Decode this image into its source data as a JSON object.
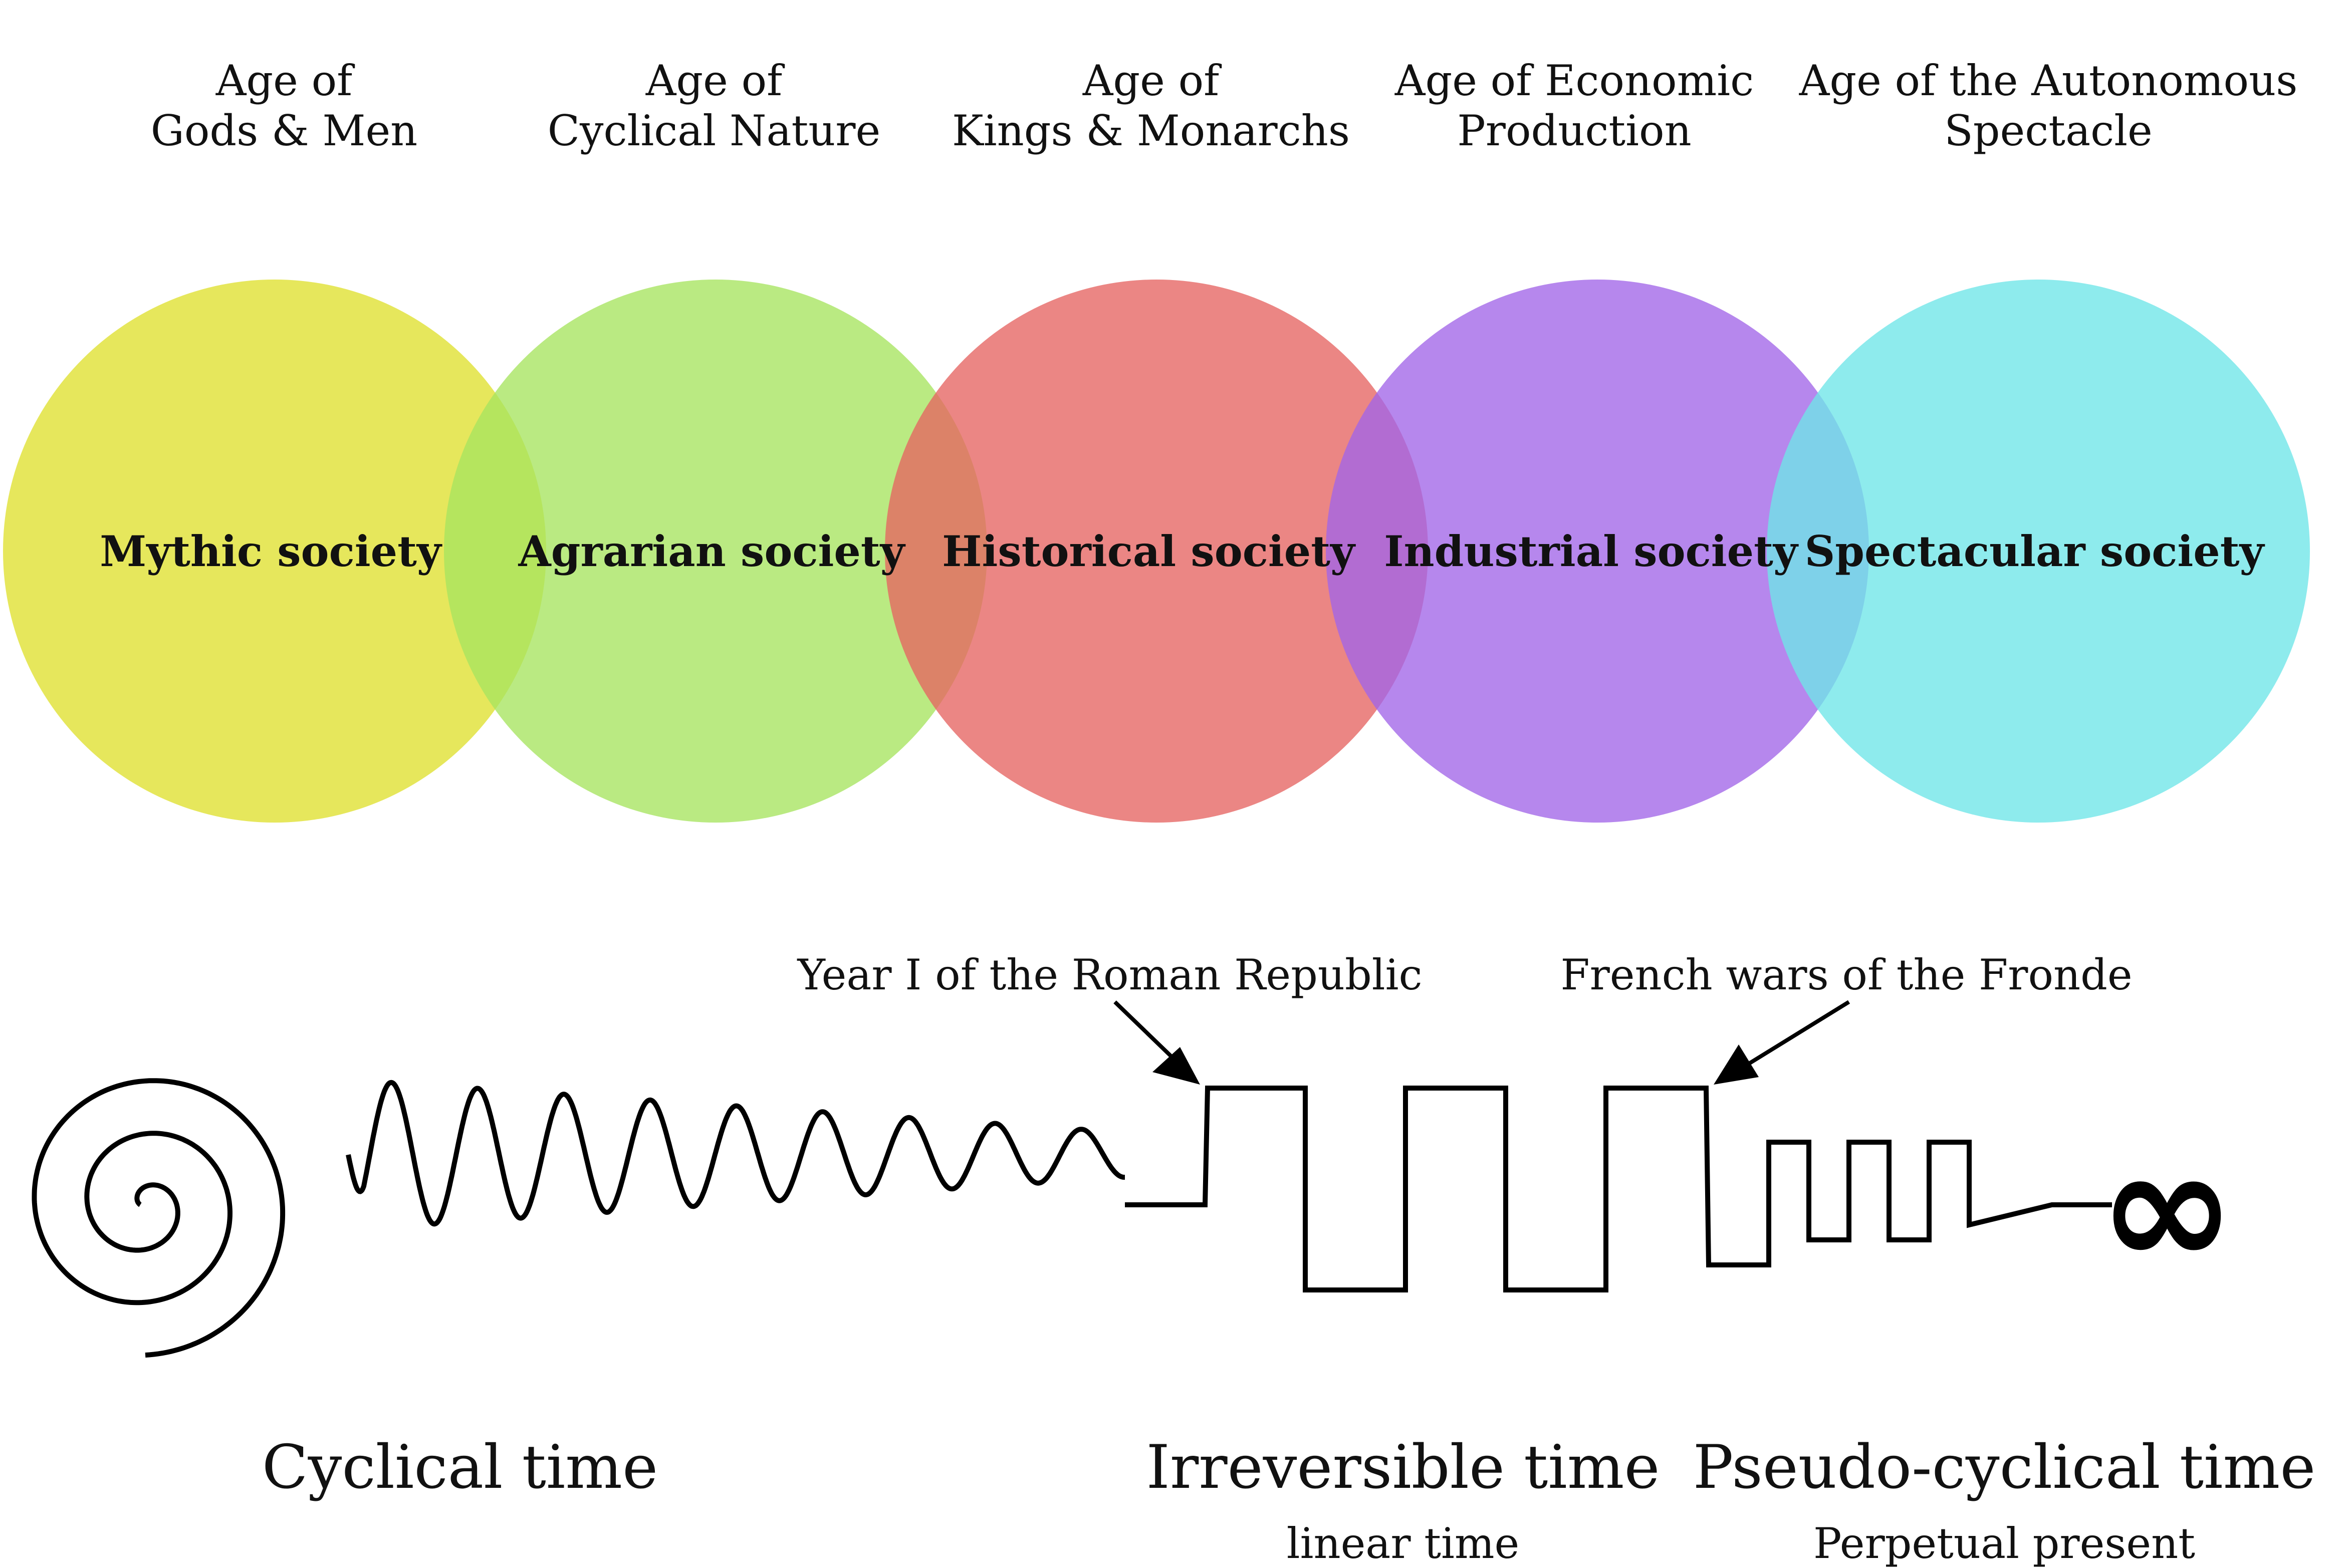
{
  "ages": [
    {
      "line1": "Age of",
      "line2": "Gods & Men"
    },
    {
      "line1": "Age of",
      "line2": "Cyclical Nature"
    },
    {
      "line1": "Age of",
      "line2": "Kings & Monarchs"
    },
    {
      "line1": "Age of Economic",
      "line2": "Production"
    },
    {
      "line1": "Age of the Autonomous",
      "line2": "Spectacle"
    }
  ],
  "societies": [
    {
      "label": "Mythic society",
      "color": "#e6e75c"
    },
    {
      "label": "Agrarian society",
      "color": "#a6e45f"
    },
    {
      "label": "Historical society",
      "color": "#e66461"
    },
    {
      "label": "Industrial society",
      "color": "#a165e8"
    },
    {
      "label": "Spectacular society",
      "color": "#6ee6e8"
    }
  ],
  "events": {
    "roman_republic": "Year I of the Roman Republic",
    "fronde": "French wars of the Fronde"
  },
  "times": {
    "cyclical": {
      "title": "Cyclical time"
    },
    "irreversible": {
      "title": "Irreversible time",
      "subtitle": "linear time"
    },
    "pseudo_cyclical": {
      "title": "Pseudo-cyclical time",
      "subtitle": "Perpetual present"
    }
  },
  "infinity_symbol": "∞",
  "icons": {
    "spiral": "spiral-icon",
    "arrow": "arrow-icon"
  }
}
